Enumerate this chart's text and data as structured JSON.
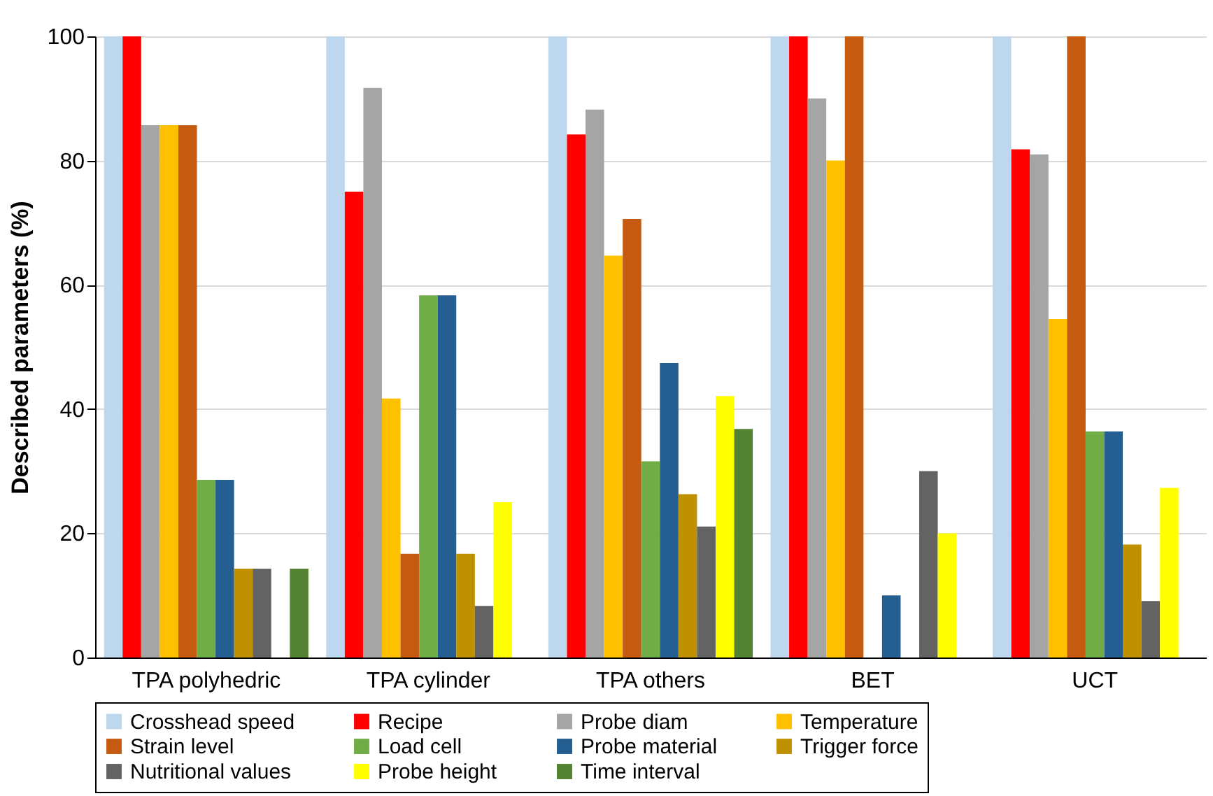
{
  "chart_data": {
    "type": "bar",
    "ylabel": "Described parameters (%)",
    "categories": [
      "TPA polyhedric",
      "TPA cylinder",
      "TPA others",
      "BET",
      "UCT"
    ],
    "series": [
      {
        "name": "Crosshead speed",
        "color": "#bdd7ee",
        "values": [
          100,
          100,
          100,
          100,
          100
        ]
      },
      {
        "name": "Recipe",
        "color": "#ff0000",
        "values": [
          100,
          75,
          84.2,
          100,
          81.8
        ]
      },
      {
        "name": "Probe diam",
        "color": "#a5a5a5",
        "values": [
          85.7,
          91.7,
          88.2,
          90,
          81
        ]
      },
      {
        "name": "Temperature",
        "color": "#ffc000",
        "values": [
          85.7,
          41.7,
          64.7,
          80,
          54.5
        ]
      },
      {
        "name": "Strain level",
        "color": "#c55a11",
        "values": [
          85.7,
          16.7,
          70.6,
          100,
          100
        ]
      },
      {
        "name": "Load cell",
        "color": "#70ad47",
        "values": [
          28.6,
          58.3,
          31.6,
          0,
          36.4
        ]
      },
      {
        "name": "Probe material",
        "color": "#255e91",
        "values": [
          28.6,
          58.3,
          47.4,
          10,
          36.4
        ]
      },
      {
        "name": "Trigger force",
        "color": "#bf9000",
        "values": [
          14.3,
          16.7,
          26.3,
          0,
          18.2
        ]
      },
      {
        "name": "Nutritional values",
        "color": "#636363",
        "values": [
          14.3,
          8.3,
          21.1,
          30,
          9.1
        ]
      },
      {
        "name": "Probe height",
        "color": "#ffff00",
        "values": [
          0,
          25,
          42.1,
          20,
          27.3
        ]
      },
      {
        "name": "Time interval",
        "color": "#548235",
        "values": [
          14.3,
          0,
          36.8,
          0,
          0
        ]
      }
    ],
    "ylim": [
      0,
      100
    ],
    "yticks": [
      0,
      20,
      40,
      60,
      80,
      100
    ],
    "grid": "y",
    "legend": "bottom"
  }
}
